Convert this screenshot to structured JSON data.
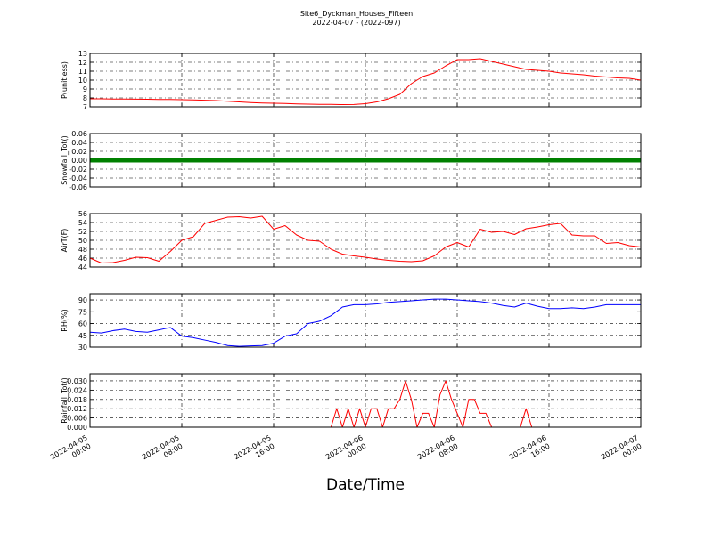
{
  "chart_data": [
    {
      "type": "line",
      "title": "Site6_Dyckman_Houses_Fifteen",
      "subtitle": "2022-04-07 - (2022-097)",
      "ylabel": "P(unitless)",
      "ylim": [
        7,
        13
      ],
      "yticks": [
        7,
        8,
        9,
        10,
        11,
        12,
        13
      ],
      "grid": true,
      "x": [
        "2022-04-05 00:00",
        "2022-04-05 01:00",
        "2022-04-05 02:00",
        "2022-04-05 03:00",
        "2022-04-05 04:00",
        "2022-04-05 05:00",
        "2022-04-05 06:00",
        "2022-04-05 07:00",
        "2022-04-05 08:00",
        "2022-04-05 09:00",
        "2022-04-05 10:00",
        "2022-04-05 11:00",
        "2022-04-05 12:00",
        "2022-04-05 13:00",
        "2022-04-05 14:00",
        "2022-04-05 15:00",
        "2022-04-05 16:00",
        "2022-04-05 17:00",
        "2022-04-05 18:00",
        "2022-04-05 19:00",
        "2022-04-05 20:00",
        "2022-04-05 21:00",
        "2022-04-05 22:00",
        "2022-04-05 23:00",
        "2022-04-06 00:00",
        "2022-04-06 01:00",
        "2022-04-06 02:00",
        "2022-04-06 03:00",
        "2022-04-06 04:00",
        "2022-04-06 05:00",
        "2022-04-06 06:00",
        "2022-04-06 07:00",
        "2022-04-06 08:00",
        "2022-04-06 09:00",
        "2022-04-06 10:00",
        "2022-04-06 11:00",
        "2022-04-06 12:00",
        "2022-04-06 13:00",
        "2022-04-06 14:00",
        "2022-04-06 15:00",
        "2022-04-06 16:00",
        "2022-04-06 17:00",
        "2022-04-06 18:00",
        "2022-04-06 19:00",
        "2022-04-06 20:00",
        "2022-04-06 21:00",
        "2022-04-06 22:00",
        "2022-04-06 23:00",
        "2022-04-07 00:00"
      ],
      "series": [
        {
          "color": "#ff0000",
          "values": [
            7.9,
            7.9,
            7.88,
            7.87,
            7.86,
            7.85,
            7.83,
            7.82,
            7.8,
            7.77,
            7.74,
            7.7,
            7.62,
            7.55,
            7.48,
            7.43,
            7.4,
            7.37,
            7.33,
            7.3,
            7.28,
            7.27,
            7.25,
            7.26,
            7.35,
            7.55,
            7.9,
            8.4,
            9.6,
            10.4,
            10.8,
            11.6,
            12.3,
            12.3,
            12.4,
            12.1,
            11.8,
            11.5,
            11.2,
            11.1,
            11.0,
            10.8,
            10.7,
            10.6,
            10.45,
            10.35,
            10.25,
            10.2,
            10.0
          ]
        }
      ]
    },
    {
      "type": "line",
      "ylabel": "Snowfall_Tot()",
      "ylim": [
        -0.06,
        0.06
      ],
      "yticks": [
        -0.06,
        -0.04,
        -0.02,
        {
          "value": 0,
          "label": "0.00"
        },
        0.02,
        0.04,
        0.06
      ],
      "grid": true,
      "x": [
        "2022-04-05 00:00",
        "2022-04-05 01:00",
        "2022-04-05 02:00",
        "2022-04-05 03:00",
        "2022-04-05 04:00",
        "2022-04-05 05:00",
        "2022-04-05 06:00",
        "2022-04-05 07:00",
        "2022-04-05 08:00",
        "2022-04-05 09:00",
        "2022-04-05 10:00",
        "2022-04-05 11:00",
        "2022-04-05 12:00",
        "2022-04-05 13:00",
        "2022-04-05 14:00",
        "2022-04-05 15:00",
        "2022-04-05 16:00",
        "2022-04-05 17:00",
        "2022-04-05 18:00",
        "2022-04-05 19:00",
        "2022-04-05 20:00",
        "2022-04-05 21:00",
        "2022-04-05 22:00",
        "2022-04-05 23:00",
        "2022-04-06 00:00",
        "2022-04-06 01:00",
        "2022-04-06 02:00",
        "2022-04-06 03:00",
        "2022-04-06 04:00",
        "2022-04-06 05:00",
        "2022-04-06 06:00",
        "2022-04-06 07:00",
        "2022-04-06 08:00",
        "2022-04-06 09:00",
        "2022-04-06 10:00",
        "2022-04-06 11:00",
        "2022-04-06 12:00",
        "2022-04-06 13:00",
        "2022-04-06 14:00",
        "2022-04-06 15:00",
        "2022-04-06 16:00",
        "2022-04-06 17:00",
        "2022-04-06 18:00",
        "2022-04-06 19:00",
        "2022-04-06 20:00",
        "2022-04-06 21:00",
        "2022-04-06 22:00",
        "2022-04-06 23:00",
        "2022-04-07 00:00"
      ],
      "series": [
        {
          "color": "#008000",
          "values": [
            0,
            0,
            0,
            0,
            0,
            0,
            0,
            0,
            0,
            0,
            0,
            0,
            0,
            0,
            0,
            0,
            0,
            0,
            0,
            0,
            0,
            0,
            0,
            0,
            0,
            0,
            0,
            0,
            0,
            0,
            0,
            0,
            0,
            0,
            0,
            0,
            0,
            0,
            0,
            0,
            0,
            0,
            0,
            0,
            0,
            0,
            0,
            0,
            0
          ]
        }
      ]
    },
    {
      "type": "line",
      "ylabel": "AirT(F)",
      "ylim": [
        44,
        56
      ],
      "yticks": [
        44,
        46,
        48,
        50,
        52,
        54,
        56
      ],
      "grid": true,
      "x": [
        "2022-04-05 00:00",
        "2022-04-05 01:00",
        "2022-04-05 02:00",
        "2022-04-05 03:00",
        "2022-04-05 04:00",
        "2022-04-05 05:00",
        "2022-04-05 06:00",
        "2022-04-05 07:00",
        "2022-04-05 08:00",
        "2022-04-05 09:00",
        "2022-04-05 10:00",
        "2022-04-05 11:00",
        "2022-04-05 12:00",
        "2022-04-05 13:00",
        "2022-04-05 14:00",
        "2022-04-05 15:00",
        "2022-04-05 16:00",
        "2022-04-05 17:00",
        "2022-04-05 18:00",
        "2022-04-05 19:00",
        "2022-04-05 20:00",
        "2022-04-05 21:00",
        "2022-04-05 22:00",
        "2022-04-05 23:00",
        "2022-04-06 00:00",
        "2022-04-06 01:00",
        "2022-04-06 02:00",
        "2022-04-06 03:00",
        "2022-04-06 04:00",
        "2022-04-06 05:00",
        "2022-04-06 06:00",
        "2022-04-06 07:00",
        "2022-04-06 08:00",
        "2022-04-06 09:00",
        "2022-04-06 10:00",
        "2022-04-06 11:00",
        "2022-04-06 12:00",
        "2022-04-06 13:00",
        "2022-04-06 14:00",
        "2022-04-06 15:00",
        "2022-04-06 16:00",
        "2022-04-06 17:00",
        "2022-04-06 18:00",
        "2022-04-06 19:00",
        "2022-04-06 20:00",
        "2022-04-06 21:00",
        "2022-04-06 22:00",
        "2022-04-06 23:00",
        "2022-04-07 00:00"
      ],
      "series": [
        {
          "color": "#ff0000",
          "values": [
            46,
            44.9,
            45,
            45.5,
            46.2,
            46.1,
            45.3,
            47.5,
            50,
            50.8,
            53.8,
            54.5,
            55.2,
            55.3,
            55,
            55.4,
            52.5,
            53.3,
            51.2,
            50,
            49.8,
            48,
            46.9,
            46.5,
            46.2,
            45.8,
            45.5,
            45.3,
            45.2,
            45.4,
            46.5,
            48.5,
            49.5,
            48.5,
            52.5,
            51.8,
            52,
            51.3,
            52.6,
            53,
            53.5,
            53.8,
            51.2,
            51,
            51,
            49.3,
            49.5,
            48.8,
            48.5
          ]
        }
      ]
    },
    {
      "type": "line",
      "ylabel": "RH(%)",
      "ylim": [
        30,
        98
      ],
      "yticks": [
        30,
        45,
        60,
        75,
        90
      ],
      "grid": true,
      "x": [
        "2022-04-05 00:00",
        "2022-04-05 01:00",
        "2022-04-05 02:00",
        "2022-04-05 03:00",
        "2022-04-05 04:00",
        "2022-04-05 05:00",
        "2022-04-05 06:00",
        "2022-04-05 07:00",
        "2022-04-05 08:00",
        "2022-04-05 09:00",
        "2022-04-05 10:00",
        "2022-04-05 11:00",
        "2022-04-05 12:00",
        "2022-04-05 13:00",
        "2022-04-05 14:00",
        "2022-04-05 15:00",
        "2022-04-05 16:00",
        "2022-04-05 17:00",
        "2022-04-05 18:00",
        "2022-04-05 19:00",
        "2022-04-05 20:00",
        "2022-04-05 21:00",
        "2022-04-05 22:00",
        "2022-04-05 23:00",
        "2022-04-06 00:00",
        "2022-04-06 01:00",
        "2022-04-06 02:00",
        "2022-04-06 03:00",
        "2022-04-06 04:00",
        "2022-04-06 05:00",
        "2022-04-06 06:00",
        "2022-04-06 07:00",
        "2022-04-06 08:00",
        "2022-04-06 09:00",
        "2022-04-06 10:00",
        "2022-04-06 11:00",
        "2022-04-06 12:00",
        "2022-04-06 13:00",
        "2022-04-06 14:00",
        "2022-04-06 15:00",
        "2022-04-06 16:00",
        "2022-04-06 17:00",
        "2022-04-06 18:00",
        "2022-04-06 19:00",
        "2022-04-06 20:00",
        "2022-04-06 21:00",
        "2022-04-06 22:00",
        "2022-04-06 23:00",
        "2022-04-07 00:00"
      ],
      "series": [
        {
          "color": "#0000ff",
          "values": [
            49,
            48,
            51,
            53,
            50,
            49,
            52,
            55,
            44,
            42,
            39,
            36,
            32,
            31,
            31.5,
            32,
            35,
            44,
            47,
            60,
            63,
            70,
            81,
            84,
            84,
            85,
            87,
            88,
            89,
            90,
            91,
            91,
            90,
            89,
            88,
            86,
            83,
            81,
            86,
            82,
            79,
            79,
            80,
            79,
            81,
            84,
            84,
            84,
            84
          ]
        }
      ]
    },
    {
      "type": "line",
      "ylabel": "Rainfall_Tot()",
      "xlabel": "Date/Time",
      "xlim": [
        "2022-04-05 00:00",
        "2022-04-07 00:00"
      ],
      "xticks": [
        "2022-04-05 00:00",
        "2022-04-05 08:00",
        "2022-04-05 16:00",
        "2022-04-06 00:00",
        "2022-04-06 08:00",
        "2022-04-06 16:00",
        "2022-04-07 00:00"
      ],
      "ylim": [
        0,
        0.0346
      ],
      "yticks": [
        {
          "value": 0,
          "label": "0.000"
        },
        0.006,
        0.012,
        0.018,
        0.024,
        {
          "value": 0.03,
          "label": "0.030"
        }
      ],
      "grid": true,
      "x": [
        "2022-04-05 00:00",
        "2022-04-05 21:00",
        "2022-04-05 21:30",
        "2022-04-05 22:00",
        "2022-04-05 22:30",
        "2022-04-05 23:00",
        "2022-04-05 23:30",
        "2022-04-06 00:00",
        "2022-04-06 00:30",
        "2022-04-06 01:00",
        "2022-04-06 01:30",
        "2022-04-06 02:00",
        "2022-04-06 02:30",
        "2022-04-06 03:00",
        "2022-04-06 03:30",
        "2022-04-06 04:00",
        "2022-04-06 04:30",
        "2022-04-06 05:00",
        "2022-04-06 05:30",
        "2022-04-06 06:00",
        "2022-04-06 06:30",
        "2022-04-06 07:00",
        "2022-04-06 07:30",
        "2022-04-06 08:00",
        "2022-04-06 08:30",
        "2022-04-06 09:00",
        "2022-04-06 09:30",
        "2022-04-06 10:00",
        "2022-04-06 10:30",
        "2022-04-06 11:00",
        "2022-04-06 13:30",
        "2022-04-06 14:00",
        "2022-04-06 14:30",
        "2022-04-07 00:00"
      ],
      "series": [
        {
          "color": "#ff0000",
          "values": [
            0,
            0,
            0.012,
            0,
            0.012,
            0,
            0.012,
            0,
            0.012,
            0.012,
            0,
            0.012,
            0.012,
            0.018,
            0.03,
            0.018,
            0,
            0.009,
            0.009,
            0,
            0.021,
            0.03,
            0.018,
            0.009,
            0,
            0.018,
            0.018,
            0.009,
            0.009,
            0,
            0,
            0.012,
            0,
            0
          ]
        }
      ]
    }
  ]
}
